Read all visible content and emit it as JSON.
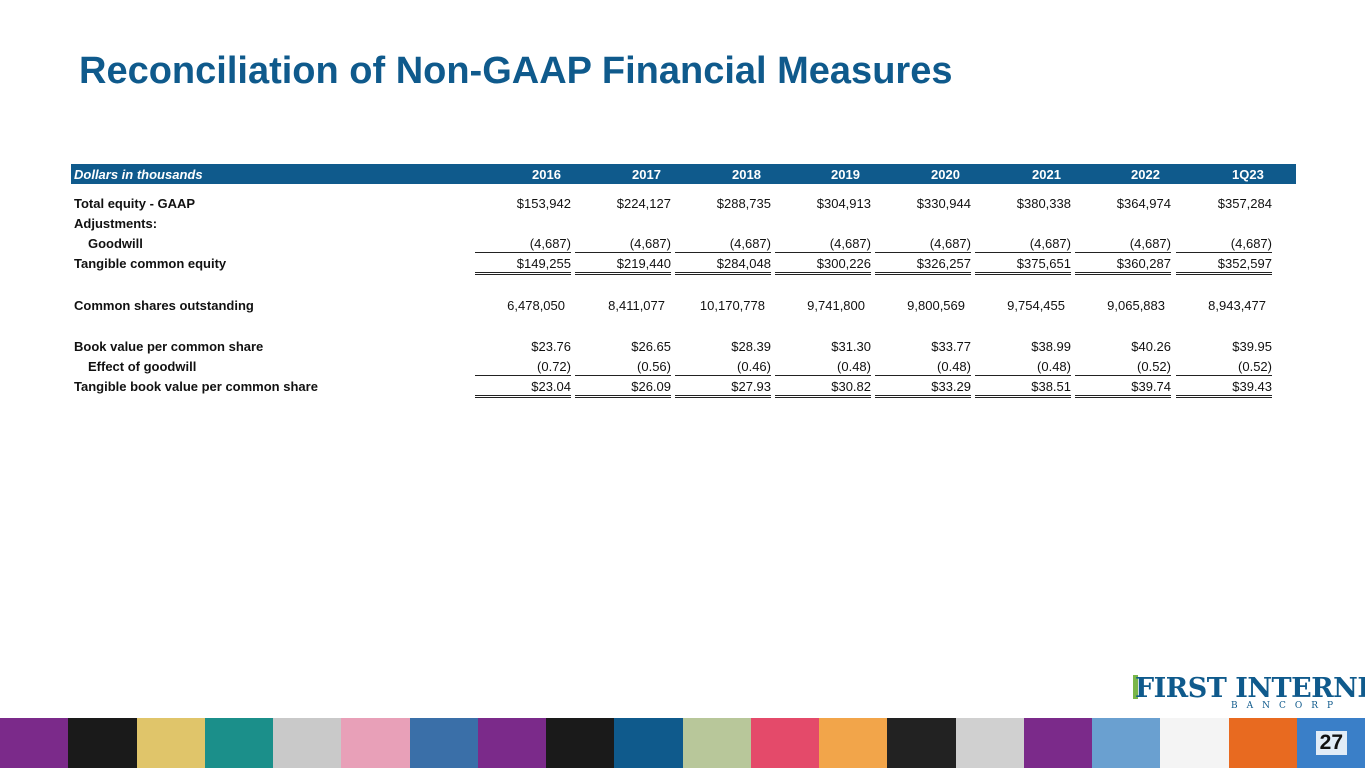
{
  "title": "Reconciliation of Non-GAAP Financial Measures",
  "table": {
    "units_label": "Dollars in thousands",
    "years": [
      "2016",
      "2017",
      "2018",
      "2019",
      "2020",
      "2021",
      "2022",
      "1Q23"
    ],
    "rows": [
      {
        "id": "total-equity",
        "label": "Total equity - GAAP",
        "indent": false,
        "values": [
          "$153,942",
          "$224,127",
          "$288,735",
          "$304,913",
          "$330,944",
          "$380,338",
          "$364,974",
          "$357,284"
        ]
      },
      {
        "id": "adjustments",
        "label": "Adjustments:",
        "indent": false,
        "values": []
      },
      {
        "id": "goodwill",
        "label": "Goodwill",
        "indent": true,
        "values": [
          "(4,687)",
          "(4,687)",
          "(4,687)",
          "(4,687)",
          "(4,687)",
          "(4,687)",
          "(4,687)",
          "(4,687)"
        ]
      },
      {
        "id": "tangible-common-equity",
        "label": "Tangible common equity",
        "indent": false,
        "values": [
          "$149,255",
          "$219,440",
          "$284,048",
          "$300,226",
          "$326,257",
          "$375,651",
          "$360,287",
          "$352,597"
        ]
      },
      {
        "id": "common-shares",
        "label": "Common shares outstanding",
        "indent": false,
        "values": [
          "6,478,050",
          "8,411,077",
          "10,170,778",
          "9,741,800",
          "9,800,569",
          "9,754,455",
          "9,065,883",
          "8,943,477"
        ]
      },
      {
        "id": "book-value",
        "label": "Book value per common share",
        "indent": false,
        "values": [
          "$23.76",
          "$26.65",
          "$28.39",
          "$31.30",
          "$33.77",
          "$38.99",
          "$40.26",
          "$39.95"
        ]
      },
      {
        "id": "effect-goodwill",
        "label": "Effect of goodwill",
        "indent": true,
        "values": [
          "(0.72)",
          "(0.56)",
          "(0.46)",
          "(0.48)",
          "(0.48)",
          "(0.48)",
          "(0.52)",
          "(0.52)"
        ]
      },
      {
        "id": "tangible-book-value",
        "label": "Tangible book value per common share",
        "indent": false,
        "values": [
          "$23.04",
          "$26.09",
          "$27.93",
          "$30.82",
          "$33.29",
          "$38.51",
          "$39.74",
          "$39.43"
        ]
      }
    ]
  },
  "logo": {
    "name": "FIRST INTERNET",
    "sub": "BANCORP"
  },
  "page_number": "27",
  "colors": {
    "brand": "#0f5a8c",
    "accent": "#7ab648"
  }
}
